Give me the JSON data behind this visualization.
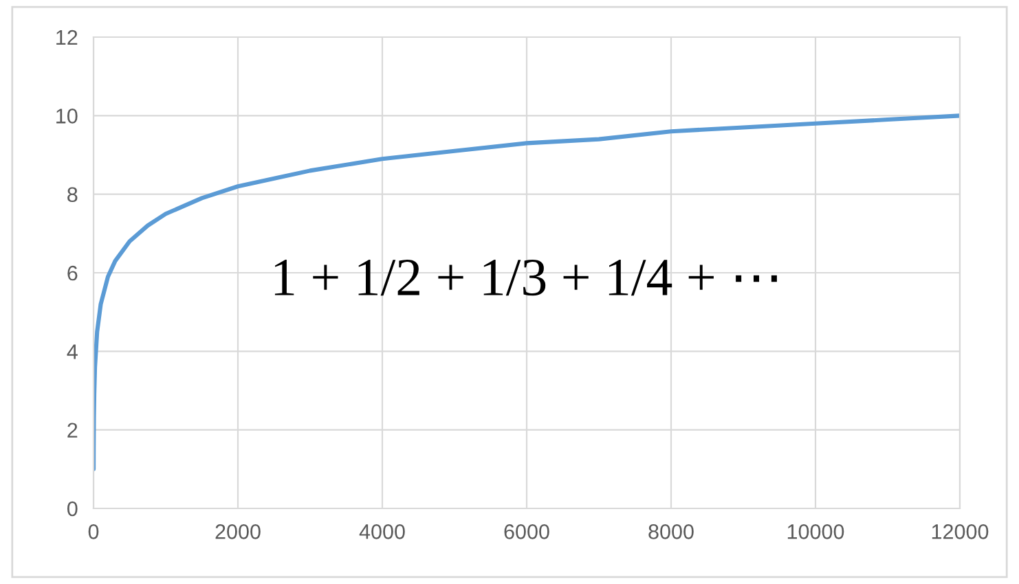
{
  "chart_data": {
    "type": "line",
    "x": [
      1,
      2,
      5,
      10,
      20,
      50,
      100,
      200,
      300,
      500,
      750,
      1000,
      1500,
      2000,
      3000,
      4000,
      5000,
      6000,
      7000,
      8000,
      9000,
      10000,
      11000,
      12000
    ],
    "series": [
      {
        "color": "#5b9bd5",
        "values": [
          1.0,
          1.5,
          2.3,
          2.9,
          3.6,
          4.5,
          5.2,
          5.9,
          6.3,
          6.8,
          7.2,
          7.5,
          7.9,
          8.2,
          8.6,
          8.9,
          9.1,
          9.3,
          9.4,
          9.6,
          9.7,
          9.8,
          9.9,
          10.0
        ]
      }
    ],
    "xlim": [
      0,
      12000
    ],
    "xticks": [
      0,
      2000,
      4000,
      6000,
      8000,
      10000,
      12000
    ],
    "ylim": [
      0,
      12
    ],
    "yticks": [
      0,
      2,
      4,
      6,
      8,
      10,
      12
    ],
    "grid": true,
    "marker": "none",
    "line_style": "solid",
    "annotations": [
      "1 + 1/2 + 1/3 + 1/4 + ⋯"
    ]
  }
}
